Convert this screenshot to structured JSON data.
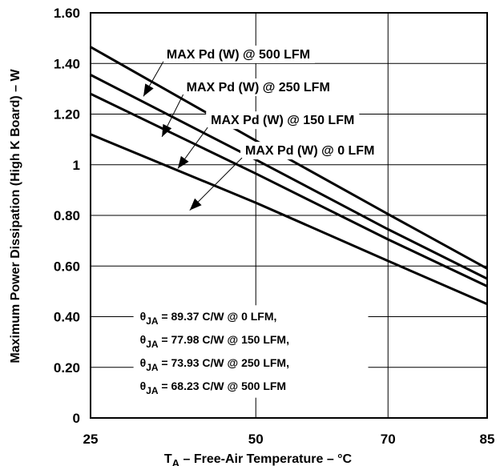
{
  "chart_data": {
    "type": "line",
    "xlabel_main": "T",
    "xlabel_sub": "A",
    "xlabel_rest": " – Free-Air Temperature – °C",
    "ylabel": "Maximum Power Dissipation (High K Board) – W",
    "xlim": [
      25,
      85
    ],
    "ylim": [
      0,
      1.6
    ],
    "grid": true,
    "x_ticks": [
      {
        "value": 25,
        "label": "25"
      },
      {
        "value": 50,
        "label": "50"
      },
      {
        "value": 70,
        "label": "70"
      },
      {
        "value": 85,
        "label": "85"
      }
    ],
    "y_ticks": [
      {
        "value": 0,
        "label": "0"
      },
      {
        "value": 0.2,
        "label": "0.20"
      },
      {
        "value": 0.4,
        "label": "0.40"
      },
      {
        "value": 0.6,
        "label": "0.60"
      },
      {
        "value": 0.8,
        "label": "0.80"
      },
      {
        "value": 1.0,
        "label": "1"
      },
      {
        "value": 1.2,
        "label": "1.20"
      },
      {
        "value": 1.4,
        "label": "1.40"
      },
      {
        "value": 1.6,
        "label": "1.60"
      }
    ],
    "series": [
      {
        "name": "MAX Pd (W) @ 500 LFM",
        "points": [
          [
            25,
            1.465
          ],
          [
            50,
            1.095
          ],
          [
            70,
            0.805
          ],
          [
            85,
            0.59
          ]
        ]
      },
      {
        "name": "MAX Pd (W) @ 250 LFM",
        "points": [
          [
            25,
            1.355
          ],
          [
            50,
            1.02
          ],
          [
            70,
            0.745
          ],
          [
            85,
            0.55
          ]
        ]
      },
      {
        "name": "MAX Pd (W) @ 150 LFM",
        "points": [
          [
            25,
            1.28
          ],
          [
            50,
            0.965
          ],
          [
            70,
            0.705
          ],
          [
            85,
            0.52
          ]
        ]
      },
      {
        "name": "MAX Pd (W) @ 0 LFM",
        "points": [
          [
            25,
            1.12
          ],
          [
            50,
            0.85
          ],
          [
            70,
            0.62
          ],
          [
            85,
            0.45
          ]
        ]
      }
    ],
    "annotations": [
      {
        "text": "MAX Pd (W) @ 500 LFM",
        "text_at": [
          36.5,
          1.42
        ],
        "arrow_to": [
          33,
          1.27
        ]
      },
      {
        "text": "MAX Pd (W) @ 250 LFM",
        "text_at": [
          39.5,
          1.29
        ],
        "arrow_to": [
          35.8,
          1.11
        ]
      },
      {
        "text": "MAX Pd (W) @ 150 LFM",
        "text_at": [
          43.2,
          1.16
        ],
        "arrow_to": [
          38.2,
          0.985
        ]
      },
      {
        "text": "MAX Pd (W) @ 0 LFM",
        "text_at": [
          48.4,
          1.04
        ],
        "arrow_to": [
          40,
          0.82
        ]
      }
    ],
    "theta_notes": [
      {
        "theta": "θ",
        "sub": "JA",
        "rest": " = 89.37 C/W @ 0 LFM,"
      },
      {
        "theta": "θ",
        "sub": "JA",
        "rest": " = 77.98 C/W @ 150 LFM,"
      },
      {
        "theta": "θ",
        "sub": "JA",
        "rest": " = 73.93 C/W @ 250 LFM,"
      },
      {
        "theta": "θ",
        "sub": "JA",
        "rest": " = 68.23 C/W @ 500 LFM"
      }
    ]
  }
}
